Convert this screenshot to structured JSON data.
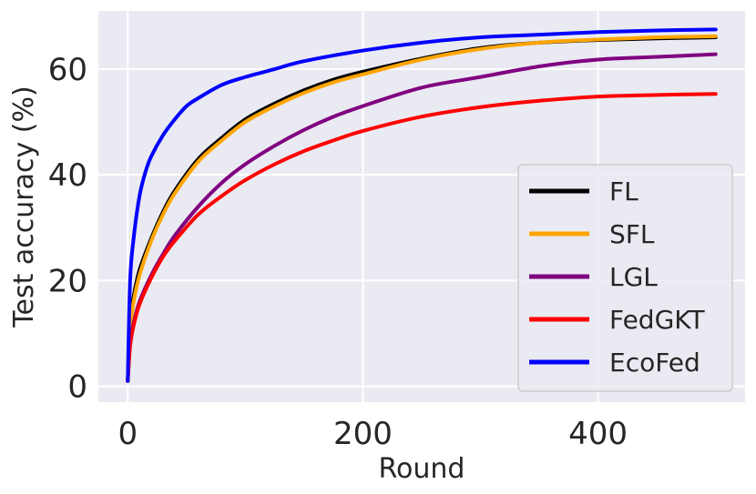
{
  "chart_data": {
    "type": "line",
    "title": "",
    "xlabel": "Round",
    "ylabel": "Test accuracy (%)",
    "xlim": [
      -25,
      525
    ],
    "ylim": [
      -3,
      71
    ],
    "xticks": [
      0,
      200,
      400
    ],
    "yticks": [
      0,
      20,
      40,
      60
    ],
    "grid": true,
    "legend_position": "lower-right",
    "background": "#eaeaf2",
    "series": [
      {
        "name": "FL",
        "color": "#000000",
        "x": [
          0,
          2,
          5,
          10,
          20,
          30,
          40,
          60,
          80,
          100,
          125,
          150,
          175,
          200,
          250,
          300,
          350,
          400,
          450,
          500
        ],
        "y": [
          1,
          12,
          17,
          22,
          28,
          33,
          37,
          43,
          47,
          50.5,
          53.5,
          56,
          58,
          59.5,
          62,
          64,
          65,
          65.5,
          65.8,
          66
        ]
      },
      {
        "name": "SFL",
        "color": "#ffa500",
        "x": [
          0,
          2,
          5,
          10,
          20,
          30,
          40,
          60,
          80,
          100,
          125,
          150,
          175,
          200,
          250,
          300,
          350,
          400,
          450,
          500
        ],
        "y": [
          1,
          11,
          16,
          21,
          27.5,
          32.5,
          36.5,
          42.5,
          46.5,
          50,
          53,
          55.5,
          57.5,
          59,
          61.8,
          63.8,
          65,
          65.6,
          66,
          66.2
        ]
      },
      {
        "name": "LGL",
        "color": "#800080",
        "x": [
          0,
          2,
          5,
          10,
          20,
          30,
          40,
          60,
          80,
          100,
          125,
          150,
          175,
          200,
          250,
          300,
          350,
          400,
          450,
          500
        ],
        "y": [
          1,
          8,
          12,
          16,
          21,
          25,
          28.5,
          34,
          38.5,
          42,
          45.5,
          48.5,
          51,
          53,
          56.5,
          58.5,
          60.5,
          61.8,
          62.3,
          62.8
        ]
      },
      {
        "name": "FedGKT",
        "color": "#ff0000",
        "x": [
          0,
          2,
          5,
          10,
          20,
          30,
          40,
          60,
          80,
          100,
          125,
          150,
          175,
          200,
          250,
          300,
          350,
          400,
          450,
          500
        ],
        "y": [
          1,
          7.5,
          11.5,
          15.5,
          20.5,
          24.5,
          27.5,
          32.5,
          36,
          39,
          42,
          44.5,
          46.5,
          48.3,
          51,
          52.8,
          54,
          54.8,
          55.1,
          55.3
        ]
      },
      {
        "name": "EcoFed",
        "color": "#0000ff",
        "x": [
          0,
          2,
          5,
          10,
          15,
          20,
          30,
          40,
          50,
          60,
          80,
          100,
          125,
          150,
          200,
          250,
          300,
          350,
          400,
          450,
          500
        ],
        "y": [
          1,
          20,
          28,
          36,
          40.5,
          43.5,
          47.5,
          50.5,
          53,
          54.5,
          57,
          58.5,
          60,
          61.5,
          63.5,
          65,
          66,
          66.5,
          67,
          67.3,
          67.5
        ]
      }
    ]
  }
}
